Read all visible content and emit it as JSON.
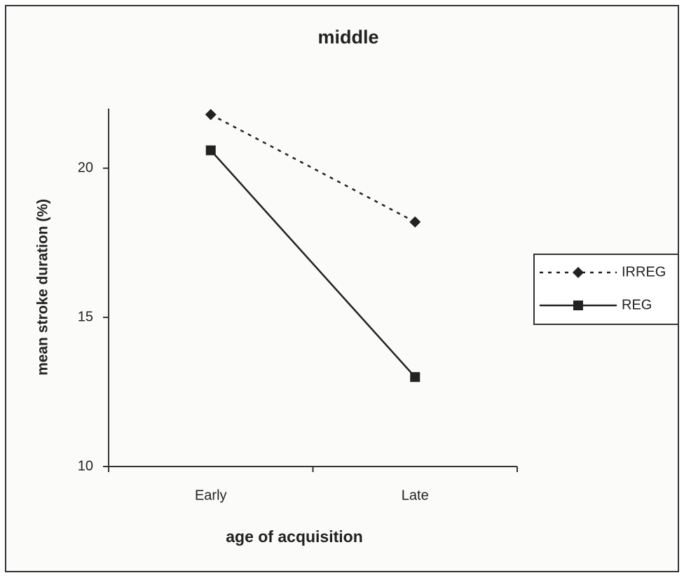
{
  "chart_data": {
    "type": "line",
    "title": "middle",
    "x_label": "age of acquisition",
    "y_label": "mean stroke duration (%)",
    "categories": [
      "Early",
      "Late"
    ],
    "series": [
      {
        "name": "IRREG",
        "color": "#222222",
        "dash": "dotted",
        "marker": "diamond",
        "values": [
          21.8,
          18.2
        ]
      },
      {
        "name": "REG",
        "color": "#222222",
        "dash": "solid",
        "marker": "square",
        "values": [
          20.6,
          13.0
        ]
      }
    ],
    "ylim": [
      10,
      22
    ],
    "yticks": [
      10,
      15,
      20
    ],
    "grid": false,
    "legend": "right"
  }
}
